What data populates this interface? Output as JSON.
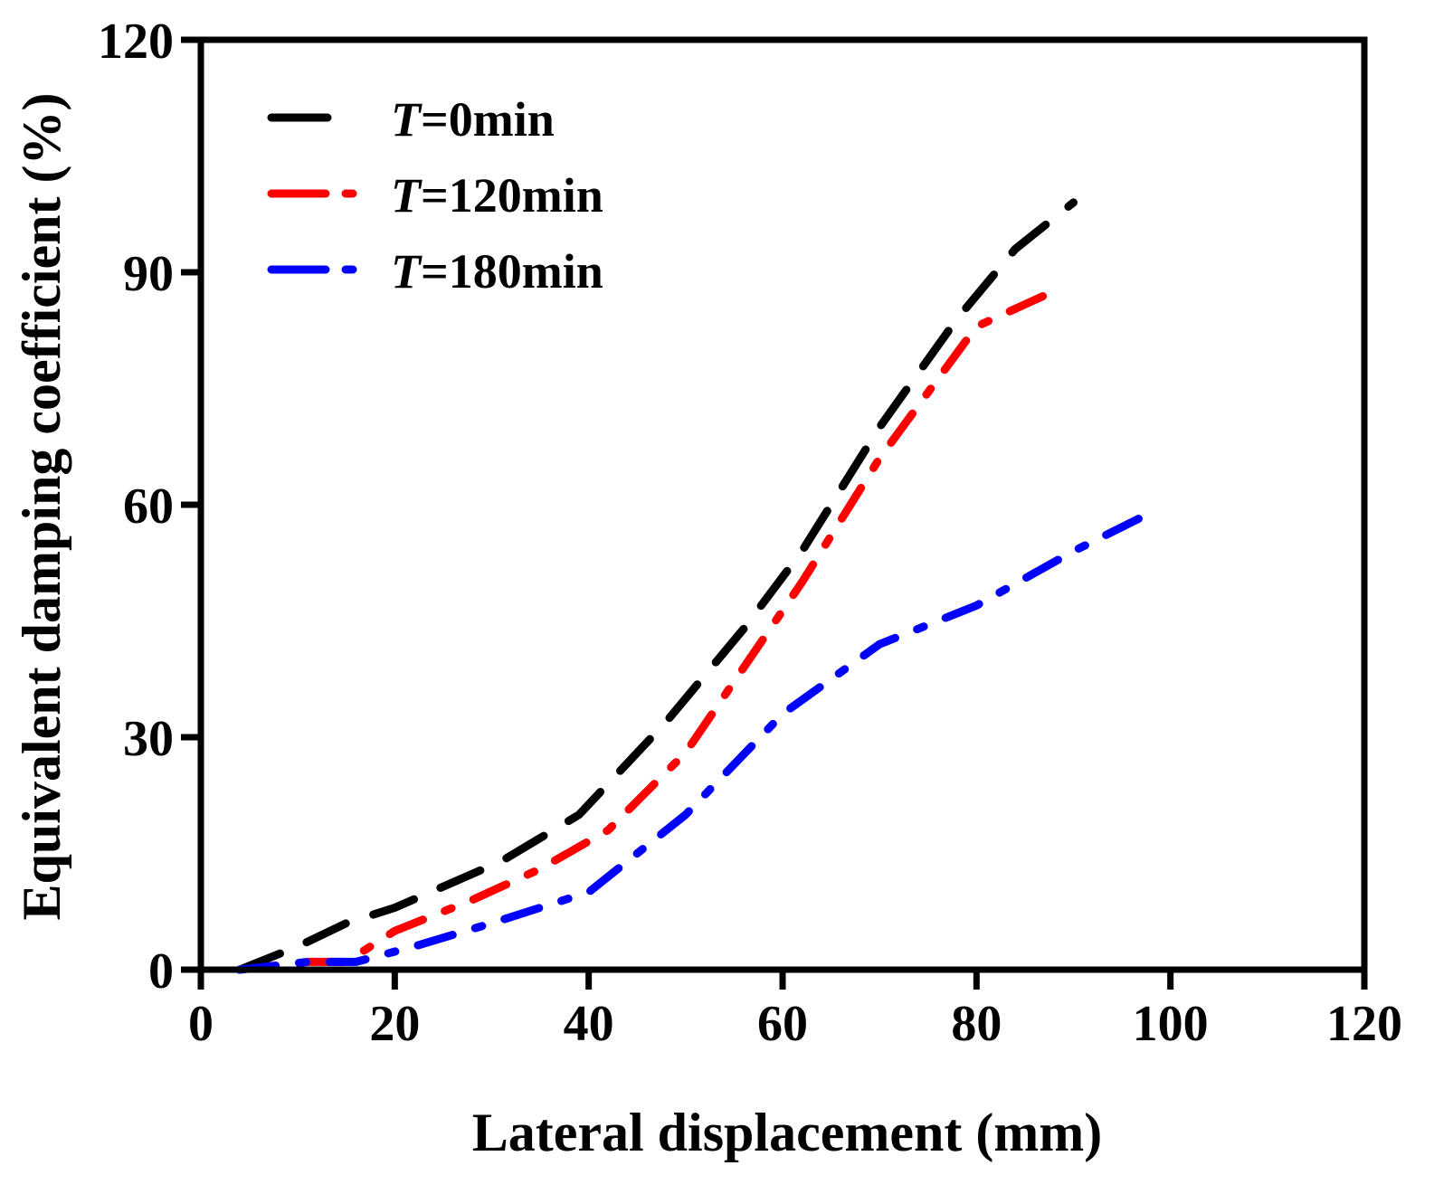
{
  "chart_data": {
    "type": "line",
    "title": "",
    "xlabel": "Lateral displacement (mm)",
    "ylabel": "Equivalent damping coefficient (%)",
    "xlim": [
      0,
      120
    ],
    "ylim": [
      0,
      120
    ],
    "xticks": [
      0,
      20,
      40,
      60,
      80,
      100,
      120
    ],
    "yticks": [
      0,
      30,
      60,
      90,
      120
    ],
    "xtick_labels": [
      "0",
      "20",
      "40",
      "60",
      "80",
      "100",
      "120"
    ],
    "ytick_labels": [
      "0",
      "30",
      "60",
      "90",
      "120"
    ],
    "grid": false,
    "legend_position": "top-left",
    "series": [
      {
        "name_prefix": "T",
        "name_suffix": "=0min",
        "color": "#000000",
        "dash": "long-dash",
        "x": [
          4,
          10,
          15,
          20,
          31,
          39,
          48,
          56,
          62,
          70,
          78,
          84,
          90
        ],
        "y": [
          0,
          3,
          6,
          8,
          14,
          20,
          32,
          44,
          54,
          70,
          84,
          93,
          99
        ]
      },
      {
        "name_prefix": "T",
        "name_suffix": "=120min",
        "color": "#ff0000",
        "dash": "dash-dot",
        "x": [
          11,
          15,
          20,
          28,
          35,
          42,
          50,
          56,
          62,
          70,
          80,
          87
        ],
        "y": [
          1,
          1,
          5,
          9,
          13,
          18,
          28,
          39,
          50,
          66,
          83,
          87
        ]
      },
      {
        "name_prefix": "T",
        "name_suffix": "=180min",
        "color": "#0000ff",
        "dash": "dash-dot",
        "x": [
          4,
          11,
          16,
          22,
          30,
          40,
          50,
          60,
          70,
          80,
          90,
          98
        ],
        "y": [
          0,
          1,
          1,
          3,
          6,
          10,
          20,
          33,
          42,
          47,
          54,
          59
        ]
      }
    ]
  }
}
